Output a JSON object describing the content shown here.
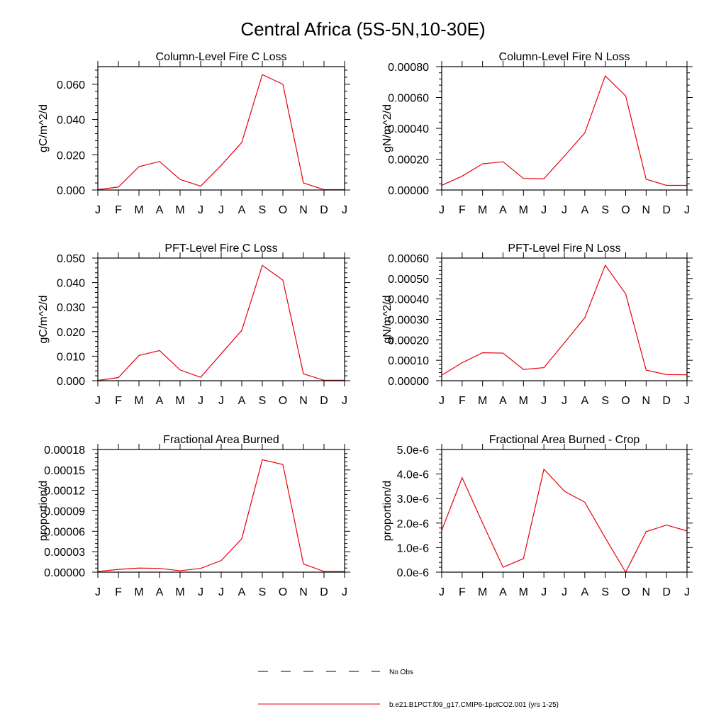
{
  "figure": {
    "title": "Central Africa (5S-5N,10-30E)",
    "line_color": "#e8000b"
  },
  "legend": {
    "items": [
      {
        "label": "No Obs",
        "style": "dashed",
        "color": "#000000"
      },
      {
        "label": "b.e21.B1PCT.f09_g17.CMIP6-1pctCO2.001 (yrs 1-25)",
        "style": "solid",
        "color": "#e8000b"
      }
    ]
  },
  "chart_data": [
    {
      "type": "line",
      "title": "Column-Level Fire C Loss",
      "ylabel": "gC/m^2/d",
      "x": [
        "J",
        "F",
        "M",
        "A",
        "M",
        "J",
        "J",
        "A",
        "S",
        "O",
        "N",
        "D",
        "J"
      ],
      "ylim": [
        0,
        0.07
      ],
      "yticks": [
        0,
        0.02,
        0.04,
        0.06
      ],
      "ytick_labels": [
        "0.000",
        "0.020",
        "0.040",
        "0.060"
      ],
      "series": [
        {
          "values": [
            0.0002,
            0.0017,
            0.0132,
            0.0162,
            0.006,
            0.0022,
            0.014,
            0.027,
            0.0655,
            0.06,
            0.004,
            0.0002,
            0.0002
          ]
        }
      ]
    },
    {
      "type": "line",
      "title": "Column-Level Fire N Loss",
      "ylabel": "gN/m^2/d",
      "x": [
        "J",
        "F",
        "M",
        "A",
        "M",
        "J",
        "J",
        "A",
        "S",
        "O",
        "N",
        "D",
        "J"
      ],
      "ylim": [
        0,
        0.0008
      ],
      "yticks": [
        0,
        0.0002,
        0.0004,
        0.0006,
        0.0008
      ],
      "ytick_labels": [
        "0.00000",
        "0.00020",
        "0.00040",
        "0.00060",
        "0.00080"
      ],
      "series": [
        {
          "values": [
            3e-05,
            9e-05,
            0.00017,
            0.000183,
            7.5e-05,
            7.3e-05,
            0.00022,
            0.00037,
            0.00074,
            0.00061,
            7e-05,
            3e-05,
            3e-05
          ]
        }
      ]
    },
    {
      "type": "line",
      "title": "PFT-Level Fire C Loss",
      "ylabel": "gC/m^2/d",
      "x": [
        "J",
        "F",
        "M",
        "A",
        "M",
        "J",
        "J",
        "A",
        "S",
        "O",
        "N",
        "D",
        "J"
      ],
      "ylim": [
        0,
        0.05
      ],
      "yticks": [
        0,
        0.01,
        0.02,
        0.03,
        0.04,
        0.05
      ],
      "ytick_labels": [
        "0.000",
        "0.010",
        "0.020",
        "0.030",
        "0.040",
        "0.050"
      ],
      "series": [
        {
          "values": [
            0.0001,
            0.0013,
            0.0103,
            0.0123,
            0.0044,
            0.0014,
            0.011,
            0.0205,
            0.047,
            0.041,
            0.0028,
            0.0002,
            0.0002
          ]
        }
      ]
    },
    {
      "type": "line",
      "title": "PFT-Level Fire N Loss",
      "ylabel": "gN/m^2/d",
      "x": [
        "J",
        "F",
        "M",
        "A",
        "M",
        "J",
        "J",
        "A",
        "S",
        "O",
        "N",
        "D",
        "J"
      ],
      "ylim": [
        0,
        0.0006
      ],
      "yticks": [
        0,
        0.0001,
        0.0002,
        0.0003,
        0.0004,
        0.0005,
        0.0006
      ],
      "ytick_labels": [
        "0.00000",
        "0.00010",
        "0.00020",
        "0.00030",
        "0.00040",
        "0.00050",
        "0.00060"
      ],
      "series": [
        {
          "values": [
            2.7e-05,
            8.8e-05,
            0.000137,
            0.000135,
            5.5e-05,
            6.4e-05,
            0.000185,
            0.000308,
            0.000565,
            0.000425,
            5.2e-05,
            3e-05,
            2.9e-05
          ]
        }
      ]
    },
    {
      "type": "line",
      "title": "Fractional Area Burned",
      "ylabel": "proportion/d",
      "x": [
        "J",
        "F",
        "M",
        "A",
        "M",
        "J",
        "J",
        "A",
        "S",
        "O",
        "N",
        "D",
        "J"
      ],
      "ylim": [
        0,
        0.00018
      ],
      "yticks": [
        0,
        3e-05,
        6e-05,
        9e-05,
        0.00012,
        0.00015,
        0.00018
      ],
      "ytick_labels": [
        "0.00000",
        "0.00003",
        "0.00006",
        "0.00009",
        "0.00012",
        "0.00015",
        "0.00018"
      ],
      "series": [
        {
          "values": [
            1e-06,
            4e-06,
            6e-06,
            5.5e-06,
            2e-06,
            5.5e-06,
            1.7e-05,
            4.9e-05,
            0.000165,
            0.000158,
            1.2e-05,
            1e-06,
            1e-06
          ]
        }
      ]
    },
    {
      "type": "line",
      "title": "Fractional Area Burned - Crop",
      "ylabel": "proportion/d",
      "x": [
        "J",
        "F",
        "M",
        "A",
        "M",
        "J",
        "J",
        "A",
        "S",
        "O",
        "N",
        "D",
        "J"
      ],
      "ylim": [
        0,
        5e-06
      ],
      "yticks": [
        0,
        1e-06,
        2e-06,
        3e-06,
        4e-06,
        5e-06
      ],
      "ytick_labels": [
        "0.0e-6",
        "1.0e-6",
        "2.0e-6",
        "3.0e-6",
        "4.0e-6",
        "5.0e-6"
      ],
      "series": [
        {
          "values": [
            1.7e-06,
            3.85e-06,
            2e-06,
            2e-07,
            5.5e-07,
            4.2e-06,
            3.3e-06,
            2.85e-06,
            1.4e-06,
            0.0,
            1.65e-06,
            1.92e-06,
            1.68e-06
          ]
        }
      ]
    }
  ]
}
